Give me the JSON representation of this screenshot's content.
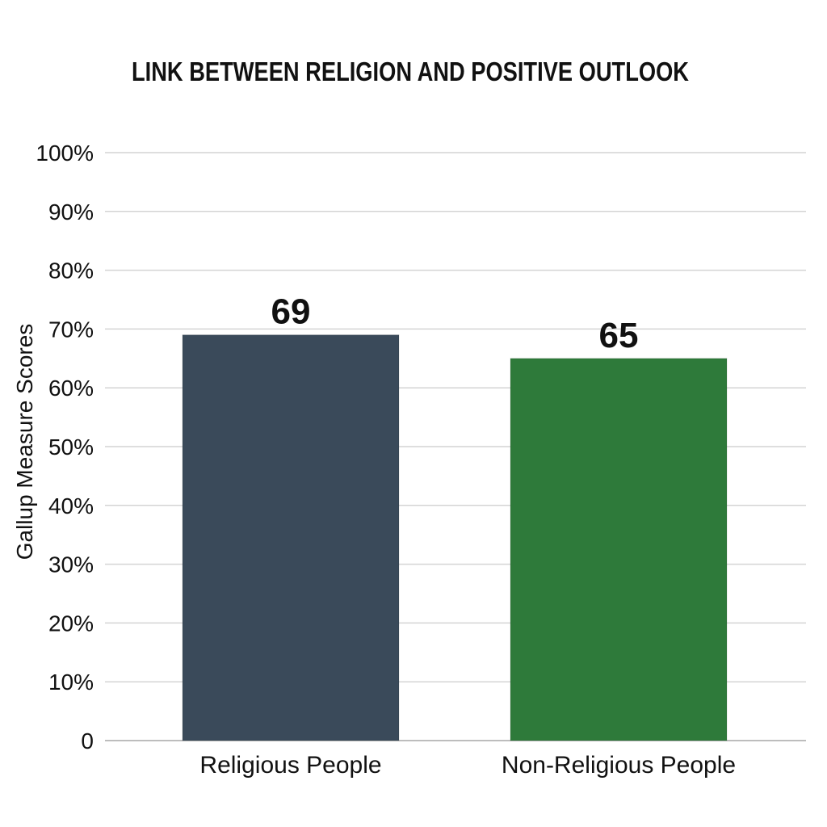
{
  "chart_data": {
    "type": "bar",
    "title": "LINK BETWEEN RELIGION AND POSITIVE OUTLOOK",
    "xlabel": "",
    "ylabel": "Gallup Measure Scores",
    "categories": [
      "Religious People",
      "Non-Religious People"
    ],
    "values": [
      69,
      65
    ],
    "value_labels": [
      "69",
      "65"
    ],
    "ylim": [
      0,
      100
    ],
    "yticks": [
      {
        "value": 0,
        "label": "0"
      },
      {
        "value": 10,
        "label": "10%"
      },
      {
        "value": 20,
        "label": "20%"
      },
      {
        "value": 30,
        "label": "30%"
      },
      {
        "value": 40,
        "label": "40%"
      },
      {
        "value": 50,
        "label": "50%"
      },
      {
        "value": 60,
        "label": "60%"
      },
      {
        "value": 70,
        "label": "70%"
      },
      {
        "value": 80,
        "label": "80%"
      },
      {
        "value": 90,
        "label": "90%"
      },
      {
        "value": 100,
        "label": "100%"
      }
    ],
    "grid": true,
    "legend": "none",
    "colors": [
      "#3a4a5a",
      "#2e7a3a"
    ]
  }
}
